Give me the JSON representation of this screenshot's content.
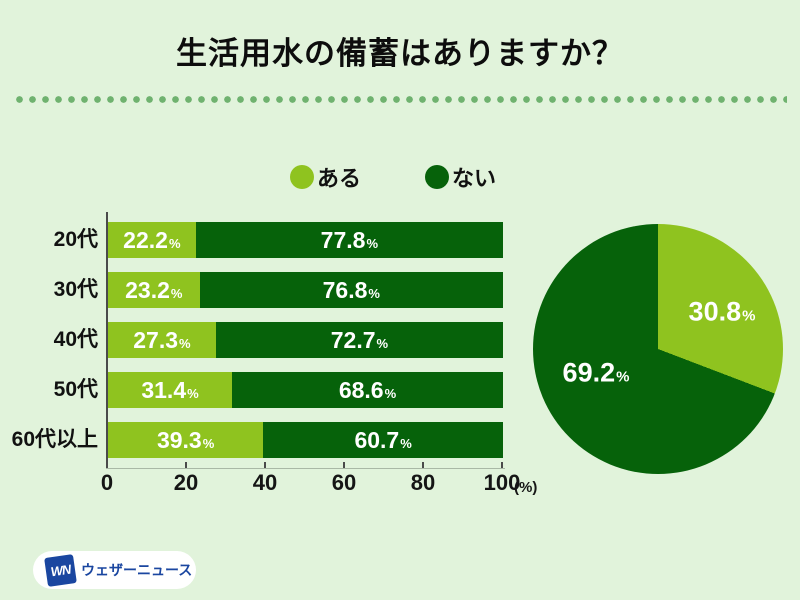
{
  "page": {
    "title": "生活用水の備蓄はありますか？",
    "background_color": "#E1F3DB",
    "divider_dot_color": "#6FB26F"
  },
  "legend": {
    "items": [
      {
        "label": "ある",
        "color": "#8FC31F"
      },
      {
        "label": "ない",
        "color": "#06620A"
      }
    ]
  },
  "chart_data": [
    {
      "type": "bar",
      "variant": "horizontal-stacked-100",
      "categories": [
        "20代",
        "30代",
        "40代",
        "50代",
        "60代以上"
      ],
      "series": [
        {
          "name": "ある",
          "color": "#8FC31F",
          "values": [
            22.2,
            23.2,
            27.3,
            31.4,
            39.3
          ]
        },
        {
          "name": "ない",
          "color": "#06620A",
          "values": [
            77.8,
            76.8,
            72.7,
            68.6,
            60.7
          ]
        }
      ],
      "value_suffix": "%",
      "x_ticks": [
        "0",
        "20",
        "40",
        "60",
        "80",
        "100"
      ],
      "x_tick_values": [
        0,
        20,
        40,
        60,
        80,
        100
      ],
      "x_unit": "(%)",
      "xlim": [
        0,
        100
      ],
      "grid": false,
      "legend_position": "top"
    },
    {
      "type": "pie",
      "slices": [
        {
          "label": "ある",
          "value": 30.8,
          "display_number": "30.8",
          "color": "#8FC31F"
        },
        {
          "label": "ない",
          "value": 69.2,
          "display_number": "69.2",
          "color": "#06620A"
        }
      ],
      "value_suffix": "%",
      "start_angle_deg": 0,
      "direction": "clockwise"
    }
  ],
  "footer": {
    "logo_mark": "WN",
    "logo_text": "ウェザーニュース",
    "logo_color": "#1A46A0"
  }
}
